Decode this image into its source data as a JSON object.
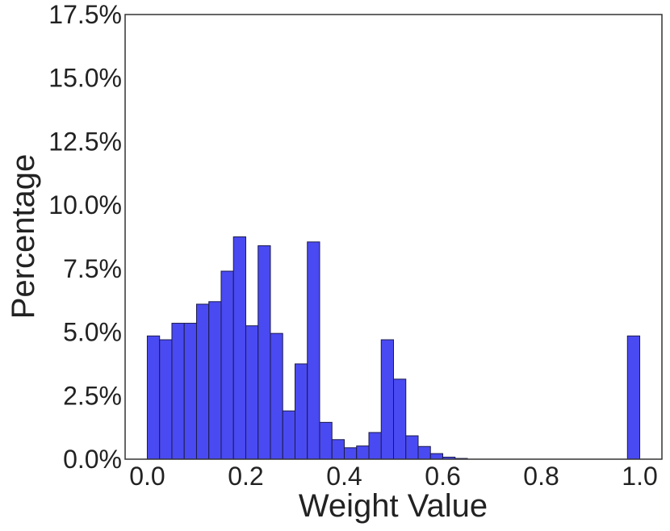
{
  "chart_data": {
    "type": "bar",
    "title": "",
    "xlabel": "Weight Value",
    "ylabel": "Percentage",
    "xlim": [
      -0.045,
      1.045
    ],
    "ylim": [
      0,
      17.5
    ],
    "x_ticks": [
      0.0,
      0.2,
      0.4,
      0.6,
      0.8,
      1.0
    ],
    "x_tick_labels": [
      "0.0",
      "0.2",
      "0.4",
      "0.6",
      "0.8",
      "1.0"
    ],
    "y_ticks": [
      0,
      2.5,
      5,
      7.5,
      10,
      12.5,
      15,
      17.5
    ],
    "y_tick_labels": [
      "0.0%",
      "2.5%",
      "5.0%",
      "7.5%",
      "10.0%",
      "12.5%",
      "15.0%",
      "17.5%"
    ],
    "bin_width": 0.025,
    "bar_color": "#4a4af2",
    "edge_color": "#1a1a4a",
    "grid": false,
    "bins": [
      {
        "x": 0.0,
        "value": 4.85
      },
      {
        "x": 0.025,
        "value": 4.7
      },
      {
        "x": 0.05,
        "value": 5.35
      },
      {
        "x": 0.075,
        "value": 5.35
      },
      {
        "x": 0.1,
        "value": 6.1
      },
      {
        "x": 0.125,
        "value": 6.2
      },
      {
        "x": 0.15,
        "value": 7.4
      },
      {
        "x": 0.175,
        "value": 8.75
      },
      {
        "x": 0.2,
        "value": 5.25
      },
      {
        "x": 0.225,
        "value": 8.4
      },
      {
        "x": 0.25,
        "value": 4.95
      },
      {
        "x": 0.275,
        "value": 1.9
      },
      {
        "x": 0.3,
        "value": 3.75
      },
      {
        "x": 0.325,
        "value": 8.55
      },
      {
        "x": 0.35,
        "value": 1.45
      },
      {
        "x": 0.375,
        "value": 0.77
      },
      {
        "x": 0.4,
        "value": 0.45
      },
      {
        "x": 0.425,
        "value": 0.52
      },
      {
        "x": 0.45,
        "value": 1.05
      },
      {
        "x": 0.475,
        "value": 4.7
      },
      {
        "x": 0.5,
        "value": 3.15
      },
      {
        "x": 0.525,
        "value": 0.92
      },
      {
        "x": 0.55,
        "value": 0.5
      },
      {
        "x": 0.575,
        "value": 0.22
      },
      {
        "x": 0.6,
        "value": 0.08
      },
      {
        "x": 0.625,
        "value": 0.03
      },
      {
        "x": 0.975,
        "value": 4.85
      }
    ]
  }
}
